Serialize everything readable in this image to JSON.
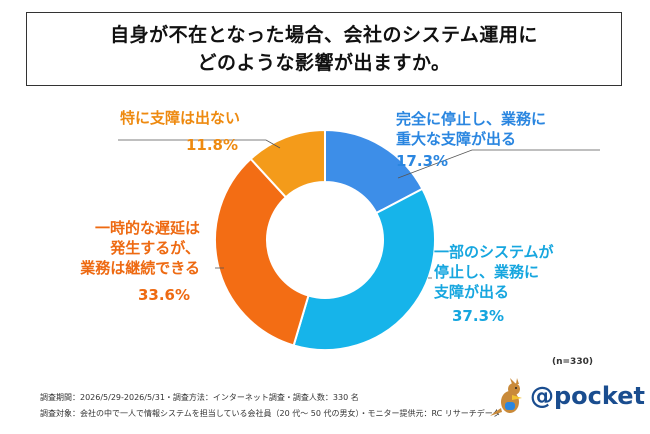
{
  "title": {
    "line1": "自身が不在となった場合、会社のシステム運用に",
    "line2": "どのような影響が出ますか。"
  },
  "chart_data": {
    "type": "pie",
    "donut": true,
    "n_label": "(n=330)",
    "slices": [
      {
        "label_lines": [
          "完全に停止し、業務に",
          "重大な支障が出る"
        ],
        "value": 17.3,
        "pct_label": "17.3%",
        "color": "#3d8ee8",
        "label_color": "#2a86e0"
      },
      {
        "label_lines": [
          "一部のシステムが",
          "停止し、業務に",
          "支障が出る"
        ],
        "value": 37.3,
        "pct_label": "37.3%",
        "color": "#16b4ea",
        "label_color": "#16a6df"
      },
      {
        "label_lines": [
          "一時的な遅延は",
          "発生するが、",
          "業務は継続できる"
        ],
        "value": 33.6,
        "pct_label": "33.6%",
        "color": "#f36d14",
        "label_color": "#ee6a12"
      },
      {
        "label_lines": [
          "特に支障は出ない"
        ],
        "value": 11.8,
        "pct_label": "11.8%",
        "color": "#f49b1a",
        "label_color": "#ee8a10"
      }
    ]
  },
  "footer": {
    "line1": "調査期間：2026/5/29-2026/5/31・調査方法：インターネット調査・調査人数：330 名",
    "line2": "調査対象：会社の中で一人で情報システムを担当している会社員（20 代～ 50 代の男女）・モニター提供元：RC リサーチデータ"
  },
  "logo": {
    "text": "@pocket",
    "icon": "kangaroo-mascot-icon"
  }
}
